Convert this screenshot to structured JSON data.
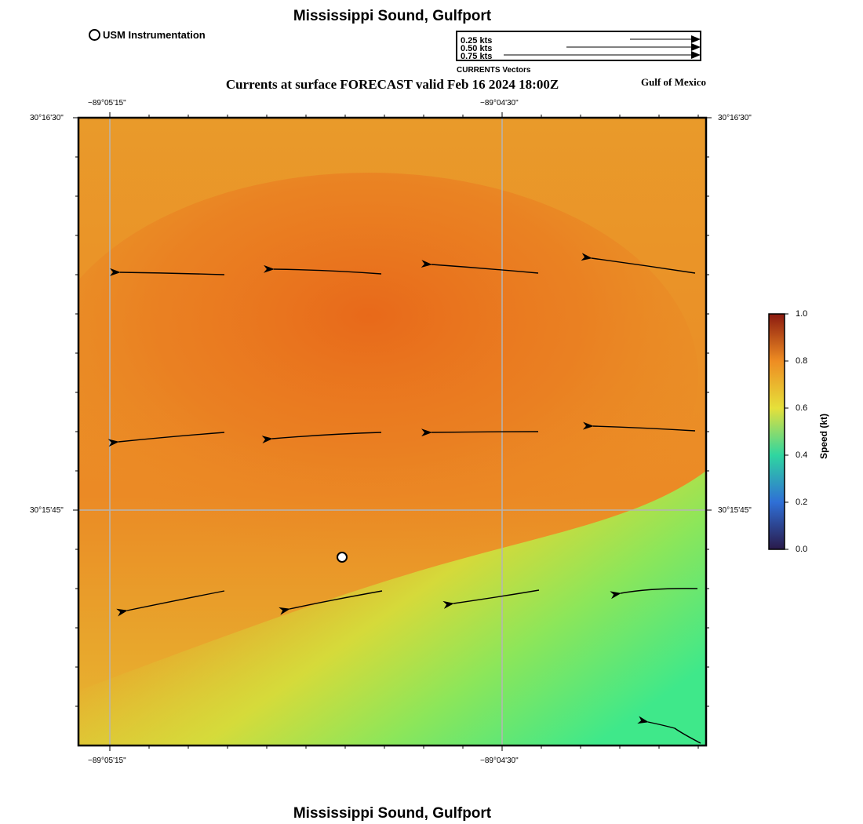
{
  "header": {
    "title": "Mississippi Sound, Gulfport",
    "subtitle": "Currents at surface FORECAST valid Feb 16 2024 18:00Z",
    "region": "Gulf of Mexico",
    "footer_title": "Mississippi Sound, Gulfport"
  },
  "legend": {
    "station_label": "USM Instrumentation",
    "vector_caption": "CURRENTS Vectors",
    "vector_scale": [
      {
        "label": "0.25 kts",
        "speed_kt": 0.25
      },
      {
        "label": "0.50 kts",
        "speed_kt": 0.5
      },
      {
        "label": "0.75 kts",
        "speed_kt": 0.75
      }
    ]
  },
  "map": {
    "lon_ticks": [
      "−89°05'15\"",
      "−89°04'30\""
    ],
    "lat_ticks": [
      "30°16'30\"",
      "30°15'45\""
    ],
    "station": {
      "name": "USM Instrumentation"
    },
    "speed_field": {
      "colors": {
        "high": "#e8691a",
        "mid": "#eb8c25",
        "low": "#d4dd3b",
        "lowest": "#3fe88a"
      }
    }
  },
  "colorbar": {
    "title": "Speed (kt)",
    "ticks": [
      "0.0",
      "0.2",
      "0.4",
      "0.6",
      "0.8",
      "1.0"
    ],
    "range": [
      0,
      1
    ],
    "colors": [
      "#2a1a4a",
      "#2f6fd6",
      "#2fd6a0",
      "#e6e03a",
      "#ee8c22",
      "#8b1a10"
    ]
  }
}
